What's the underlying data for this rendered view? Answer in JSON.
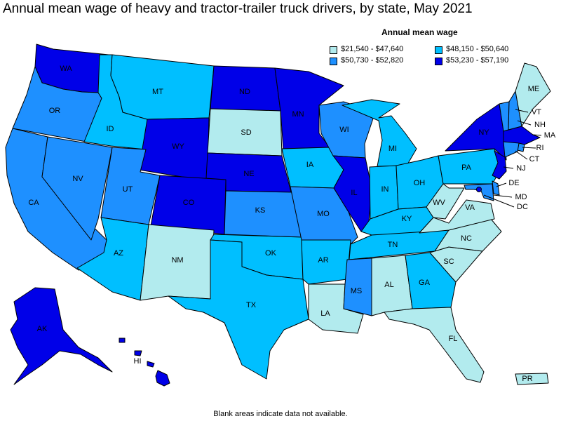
{
  "title": "Annual mean wage of heavy and tractor-trailer truck drivers, by state, May 2021",
  "legend": {
    "title": "Annual mean wage",
    "items": [
      {
        "label": "$21,540 - $47,640",
        "color": "#b2ebee"
      },
      {
        "label": "$48,150 - $50,640",
        "color": "#00bfff"
      },
      {
        "label": "$50,730 - $52,820",
        "color": "#1e90ff"
      },
      {
        "label": "$53,230 - $57,190",
        "color": "#0000e8"
      }
    ]
  },
  "footer": "Blank areas indicate data not available.",
  "states": {
    "WA": {
      "label": "WA",
      "tier": 3
    },
    "OR": {
      "label": "OR",
      "tier": 2
    },
    "CA": {
      "label": "CA",
      "tier": 2
    },
    "ID": {
      "label": "ID",
      "tier": 1
    },
    "NV": {
      "label": "NV",
      "tier": 2
    },
    "MT": {
      "label": "MT",
      "tier": 1
    },
    "WY": {
      "label": "WY",
      "tier": 3
    },
    "UT": {
      "label": "UT",
      "tier": 2
    },
    "AZ": {
      "label": "AZ",
      "tier": 1
    },
    "CO": {
      "label": "CO",
      "tier": 3
    },
    "NM": {
      "label": "NM",
      "tier": 0
    },
    "ND": {
      "label": "ND",
      "tier": 3
    },
    "SD": {
      "label": "SD",
      "tier": 0
    },
    "NE": {
      "label": "NE",
      "tier": 3
    },
    "KS": {
      "label": "KS",
      "tier": 2
    },
    "OK": {
      "label": "OK",
      "tier": 1
    },
    "TX": {
      "label": "TX",
      "tier": 1
    },
    "MN": {
      "label": "MN",
      "tier": 3
    },
    "IA": {
      "label": "IA",
      "tier": 1
    },
    "MO": {
      "label": "MO",
      "tier": 2
    },
    "AR": {
      "label": "AR",
      "tier": 1
    },
    "LA": {
      "label": "LA",
      "tier": 0
    },
    "WI": {
      "label": "WI",
      "tier": 2
    },
    "IL": {
      "label": "IL",
      "tier": 3
    },
    "MI": {
      "label": "MI",
      "tier": 1
    },
    "IN": {
      "label": "IN",
      "tier": 1
    },
    "OH": {
      "label": "OH",
      "tier": 1
    },
    "KY": {
      "label": "KY",
      "tier": 1
    },
    "TN": {
      "label": "TN",
      "tier": 1
    },
    "MS": {
      "label": "MS",
      "tier": 2
    },
    "AL": {
      "label": "AL",
      "tier": 0
    },
    "GA": {
      "label": "GA",
      "tier": 1
    },
    "FL": {
      "label": "FL",
      "tier": 0
    },
    "SC": {
      "label": "SC",
      "tier": 0
    },
    "NC": {
      "label": "NC",
      "tier": 0
    },
    "VA": {
      "label": "VA",
      "tier": 0
    },
    "WV": {
      "label": "WV",
      "tier": 0
    },
    "PA": {
      "label": "PA",
      "tier": 1
    },
    "NY": {
      "label": "NY",
      "tier": 3
    },
    "VT": {
      "label": "VT",
      "tier": 2
    },
    "NH": {
      "label": "NH",
      "tier": 2
    },
    "ME": {
      "label": "ME",
      "tier": 0
    },
    "MA": {
      "label": "MA",
      "tier": 3
    },
    "RI": {
      "label": "RI",
      "tier": 2
    },
    "CT": {
      "label": "CT",
      "tier": 2
    },
    "NJ": {
      "label": "NJ",
      "tier": 3
    },
    "DE": {
      "label": "DE",
      "tier": 2
    },
    "MD": {
      "label": "MD",
      "tier": 2
    },
    "DC": {
      "label": "DC",
      "tier": 3
    },
    "AK": {
      "label": "AK",
      "tier": 3
    },
    "HI": {
      "label": "HI",
      "tier": 3
    },
    "PR": {
      "label": "PR",
      "tier": 0
    }
  }
}
